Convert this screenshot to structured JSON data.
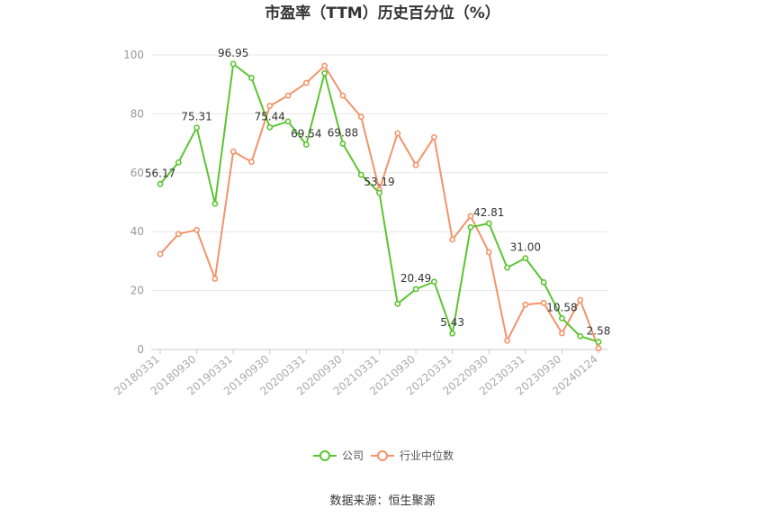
{
  "chart_data": {
    "type": "line",
    "title": "市盈率（TTM）历史百分位（%）",
    "source": "数据来源：恒生聚源",
    "ylim": [
      0,
      100
    ],
    "yticks": [
      0,
      20,
      40,
      60,
      80,
      100
    ],
    "grid": true,
    "legend_position": "bottom",
    "x_labels": [
      "20180331",
      "20180930",
      "20190331",
      "20190930",
      "20200331",
      "20200930",
      "20210331",
      "20210930",
      "20220331",
      "20220930",
      "20230331",
      "20230930",
      "20240124"
    ],
    "x": [
      "20180331",
      "20180630",
      "20180930",
      "20181231",
      "20190331",
      "20190630",
      "20190930",
      "20191231",
      "20200331",
      "20200630",
      "20200930",
      "20201231",
      "20210331",
      "20210630",
      "20210930",
      "20211231",
      "20220331",
      "20220630",
      "20220930",
      "20221231",
      "20230331",
      "20230630",
      "20230930",
      "20231231",
      "20240124"
    ],
    "series": [
      {
        "name": "公司",
        "color": "#5cc431",
        "values": [
          56.17,
          63.5,
          75.31,
          49.5,
          96.95,
          92.2,
          75.44,
          77.4,
          69.54,
          93.8,
          69.88,
          59.3,
          53.19,
          15.5,
          20.49,
          23.0,
          5.43,
          41.5,
          42.81,
          27.8,
          31.0,
          22.8,
          10.58,
          4.5,
          2.58
        ],
        "labels": [
          "56.17",
          "",
          "75.31",
          "",
          "96.95",
          "",
          "75.44",
          "",
          "69.54",
          "",
          "69.88",
          "",
          "53.19",
          "",
          "20.49",
          "",
          "5.43",
          "",
          "42.81",
          "",
          "31.00",
          "",
          "10.58",
          "",
          "2.58"
        ]
      },
      {
        "name": "行业中位数",
        "color": "#f3936a",
        "values": [
          32.4,
          39.2,
          40.6,
          24.0,
          67.2,
          63.7,
          82.7,
          86.2,
          90.5,
          96.3,
          86.2,
          79.0,
          54.2,
          73.4,
          62.6,
          72.1,
          37.3,
          45.3,
          33.0,
          3.0,
          15.2,
          15.8,
          5.5,
          16.8,
          0.4
        ]
      }
    ]
  }
}
